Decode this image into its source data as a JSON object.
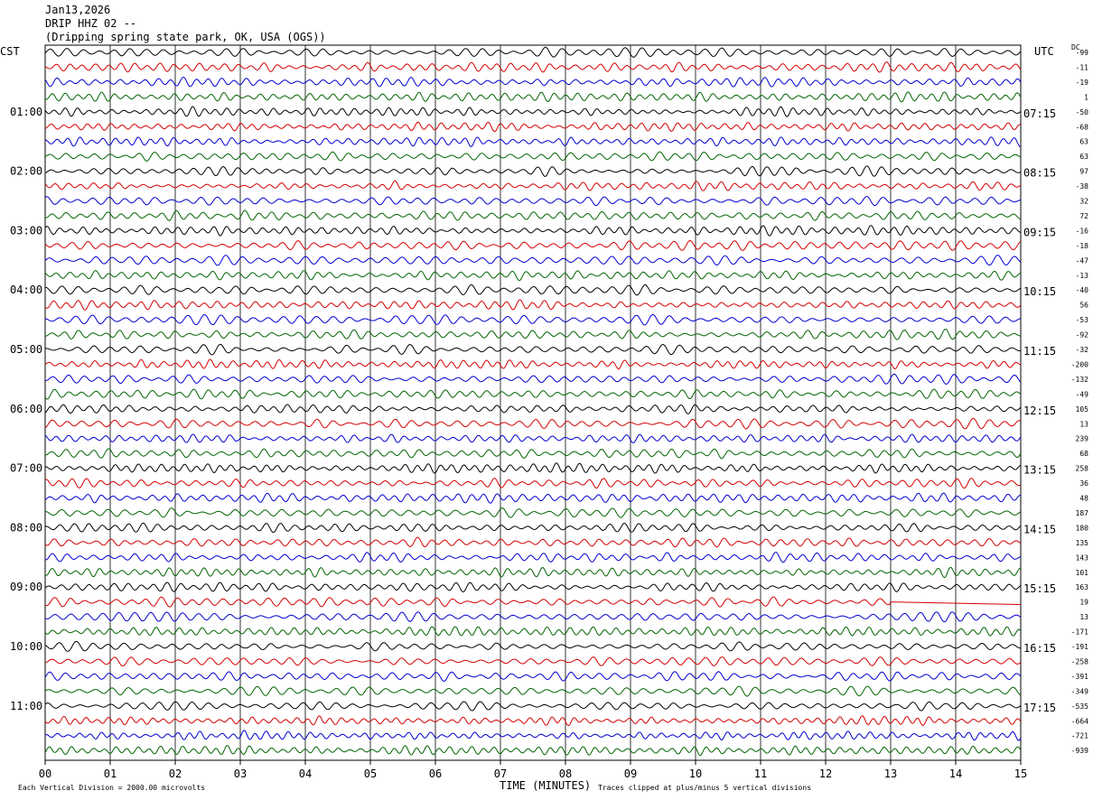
{
  "header": {
    "date": "Jan13,2026",
    "station": "DRIP HHZ 02 --",
    "location": "(Dripping spring state park, OK, USA (OGS))"
  },
  "labels": {
    "left_tz": "CST",
    "right_tz": "UTC",
    "dc_header": "DC",
    "xlabel": "TIME (MINUTES)",
    "scale_note": "Each Vertical Division = 2000.00 microvolts",
    "clip_note": "Traces clipped at plus/minus 5 vertical divisions"
  },
  "chart_data": {
    "type": "line",
    "title": "DRIP HHZ 02 --",
    "xlabel": "TIME (MINUTES)",
    "xlim": [
      0,
      15
    ],
    "x_ticks": [
      "00",
      "01",
      "02",
      "03",
      "04",
      "05",
      "06",
      "07",
      "08",
      "09",
      "10",
      "11",
      "12",
      "13",
      "14",
      "15"
    ],
    "trace_minutes": 15,
    "trace_colors": [
      "#000000",
      "#d40000",
      "#0000d0",
      "#006400"
    ],
    "cst_hour_labels": [
      "01:00",
      "02:00",
      "03:00",
      "04:00",
      "05:00",
      "06:00",
      "07:00",
      "08:00",
      "09:00",
      "10:00",
      "11:00"
    ],
    "utc_hour_labels": [
      "07:15",
      "08:15",
      "09:15",
      "10:15",
      "11:15",
      "12:15",
      "13:15",
      "14:15",
      "15:15",
      "16:15",
      "17:15"
    ],
    "dc_offsets": [
      "-99",
      "-11",
      "-19",
      "1",
      "-50",
      "-68",
      "63",
      "63",
      "97",
      "-38",
      "32",
      "72",
      "-16",
      "-18",
      "-47",
      "-13",
      "-40",
      "56",
      "-53",
      "-92",
      "-32",
      "-200",
      "-132",
      "-49",
      "105",
      "13",
      "239",
      "68",
      "258",
      "36",
      "48",
      "187",
      "180",
      "135",
      "143",
      "101",
      "163",
      "19",
      "13",
      "-171",
      "-191",
      "-258",
      "-391",
      "-349",
      "-535",
      "-664",
      "-721",
      "-939"
    ],
    "flat_segment": {
      "trace": 37,
      "from_minute": 13,
      "to_minute": 15
    }
  }
}
